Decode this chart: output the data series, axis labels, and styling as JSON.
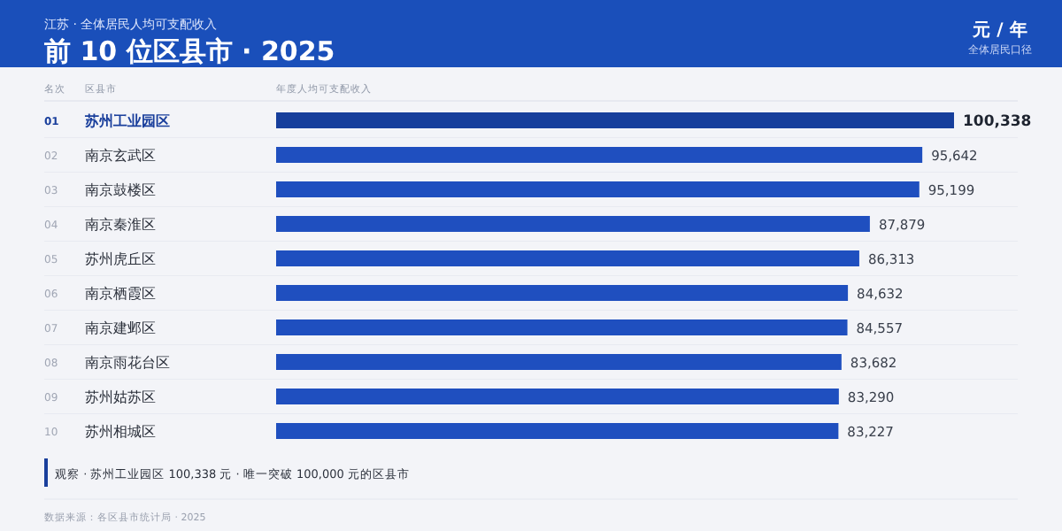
{
  "chart_data": {
    "type": "bar",
    "orientation": "horizontal",
    "value_labels": [
      "100,338",
      "95,642",
      "95,199",
      "87,879",
      "86,313",
      "84,632",
      "84,557",
      "83,682",
      "83,290",
      "83,227"
    ],
    "title": "前 10 位区县市 · 2025",
    "subtitle": "江苏 · 全体居民人均可支配收入",
    "ylabel": "区县市",
    "xlabel": "年度人均可支配收入",
    "categories": [
      "苏州工业园区",
      "南京玄武区",
      "南京鼓楼区",
      "南京秦淮区",
      "苏州虎丘区",
      "南京栖霞区",
      "南京建邺区",
      "南京雨花台区",
      "苏州姑苏区",
      "苏州相城区"
    ],
    "values": [
      100338,
      95642,
      95199,
      87879,
      86313,
      84632,
      84557,
      83682,
      83290,
      83227
    ],
    "colors": [
      "#173f9c",
      "#1f4fbf",
      "#1f4fbf",
      "#1f4fbf",
      "#1f4fbf",
      "#1f4fbf",
      "#1f4fbf",
      "#1f4fbf",
      "#1f4fbf",
      "#1f4fbf"
    ],
    "annotations": [
      "01",
      "02",
      "03",
      "04",
      "05",
      "06",
      "07",
      "08",
      "09",
      "10",
      "名次",
      "元 / 年",
      "全体居民口径",
      "观察 · 苏州工业园区 100,338 元 · 唯一突破 100,000 元的区县市",
      "数据来源：各区县市统计局 · 2025"
    ]
  }
}
